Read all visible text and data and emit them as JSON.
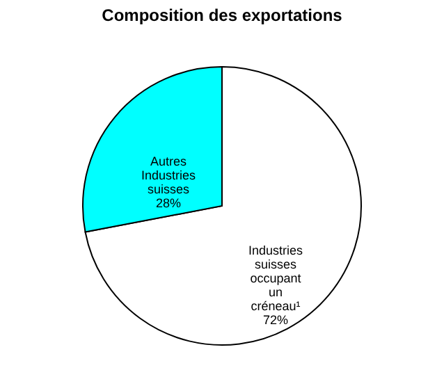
{
  "chart_data": {
    "type": "pie",
    "title": "Composition des exportations",
    "categories": [
      "Industries suisses occupant un créneau¹",
      "Autres Industries suisses"
    ],
    "values": [
      72,
      28
    ],
    "colors": [
      "#ffffff",
      "#00ffff"
    ],
    "value_labels": [
      "72%",
      "28%"
    ],
    "legend": false
  }
}
